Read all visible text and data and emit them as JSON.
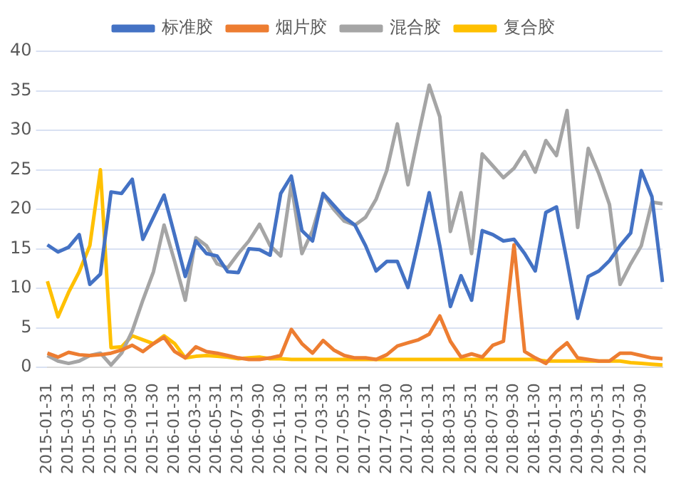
{
  "chart_data": {
    "type": "line",
    "categories": [
      "2015-01-31",
      null,
      "2015-03-31",
      null,
      "2015-05-31",
      null,
      "2015-07-31",
      null,
      "2015-09-30",
      null,
      "2015-11-30",
      null,
      "2016-01-31",
      null,
      "2016-03-31",
      null,
      "2016-05-31",
      null,
      "2016-07-31",
      null,
      "2016-09-30",
      null,
      "2016-11-30",
      null,
      "2017-01-31",
      null,
      "2017-03-31",
      null,
      "2017-05-31",
      null,
      "2017-07-31",
      null,
      "2017-09-30",
      null,
      "2017-11-30",
      null,
      "2018-01-31",
      null,
      "2018-03-31",
      null,
      "2018-05-31",
      null,
      "2018-07-31",
      null,
      "2018-09-30",
      null,
      "2018-11-30",
      null,
      "2019-01-31",
      null,
      "2019-03-31",
      null,
      "2019-05-31",
      null,
      "2019-07-31",
      null,
      "2019-09-30",
      null,
      null
    ],
    "series": [
      {
        "name": "标准胶",
        "color": "#4472c4",
        "values": [
          15.5,
          14.6,
          15.2,
          16.8,
          10.5,
          11.8,
          22.2,
          22.0,
          23.8,
          16.2,
          19.0,
          21.8,
          16.7,
          11.5,
          16.0,
          14.4,
          14.1,
          12.1,
          12.0,
          15.0,
          14.9,
          14.2,
          22.0,
          24.2,
          17.3,
          16.0,
          22.0,
          20.5,
          19.0,
          18.0,
          15.4,
          12.2,
          13.4,
          13.4,
          10.1,
          16.0,
          22.1,
          15.4,
          7.7,
          11.6,
          8.5,
          17.3,
          16.8,
          16.0,
          16.2,
          14.4,
          12.2,
          19.6,
          20.3,
          13.4,
          6.2,
          11.5,
          12.2,
          13.5,
          15.4,
          17.0,
          24.9,
          21.6,
          10.8
        ]
      },
      {
        "name": "烟片胶",
        "color": "#ed7d31",
        "values": [
          1.8,
          1.3,
          1.9,
          1.6,
          1.5,
          1.6,
          1.8,
          2.2,
          2.8,
          2.0,
          3.0,
          3.8,
          2.0,
          1.2,
          2.6,
          2.0,
          1.8,
          1.5,
          1.2,
          1.0,
          1.0,
          1.2,
          1.5,
          4.8,
          3.0,
          1.8,
          3.4,
          2.2,
          1.5,
          1.2,
          1.2,
          1.0,
          1.6,
          2.7,
          3.1,
          3.5,
          4.2,
          6.5,
          3.3,
          1.3,
          1.7,
          1.3,
          2.8,
          3.3,
          15.5,
          2.0,
          1.2,
          0.5,
          2.0,
          3.1,
          1.2,
          1.0,
          0.8,
          0.8,
          1.8,
          1.8,
          1.5,
          1.2,
          1.1
        ]
      },
      {
        "name": "混合胶",
        "color": "#a5a5a5",
        "values": [
          1.5,
          0.8,
          0.5,
          0.8,
          1.5,
          1.8,
          0.3,
          1.8,
          4.6,
          8.5,
          12.1,
          18.0,
          13.4,
          8.5,
          16.4,
          15.4,
          13.1,
          12.6,
          14.4,
          16.0,
          18.1,
          15.4,
          14.1,
          23.2,
          14.4,
          17.3,
          21.9,
          20.0,
          18.5,
          18.0,
          19.0,
          21.3,
          24.9,
          30.8,
          23.1,
          29.5,
          35.7,
          31.7,
          17.2,
          22.1,
          14.4,
          27.0,
          25.5,
          24.0,
          25.2,
          27.3,
          24.7,
          28.7,
          26.8,
          32.5,
          17.7,
          27.7,
          24.5,
          20.6,
          10.5,
          13.1,
          15.4,
          20.9,
          20.7
        ]
      },
      {
        "name": "复合胶",
        "color": "#ffc000",
        "values": [
          10.9,
          6.4,
          9.5,
          12.1,
          15.4,
          25.0,
          2.5,
          2.6,
          4.0,
          3.5,
          3.0,
          4.0,
          3.0,
          1.2,
          1.4,
          1.5,
          1.4,
          1.3,
          1.1,
          1.2,
          1.3,
          1.1,
          1.1,
          1.0,
          1.0,
          1.0,
          1.0,
          1.0,
          1.0,
          1.0,
          1.0,
          1.0,
          1.0,
          1.0,
          1.0,
          1.0,
          1.0,
          1.0,
          1.0,
          1.0,
          1.0,
          1.0,
          1.0,
          1.0,
          1.0,
          1.0,
          1.0,
          0.8,
          0.8,
          0.8,
          0.8,
          0.8,
          0.8,
          0.8,
          0.8,
          0.6,
          0.5,
          0.4,
          0.3
        ]
      }
    ],
    "ylim": [
      0,
      40
    ],
    "yticks": [
      0,
      5,
      10,
      15,
      20,
      25,
      30,
      35,
      40
    ],
    "grid": "y",
    "legend": "top",
    "marker": "none",
    "line_style": "solid"
  }
}
